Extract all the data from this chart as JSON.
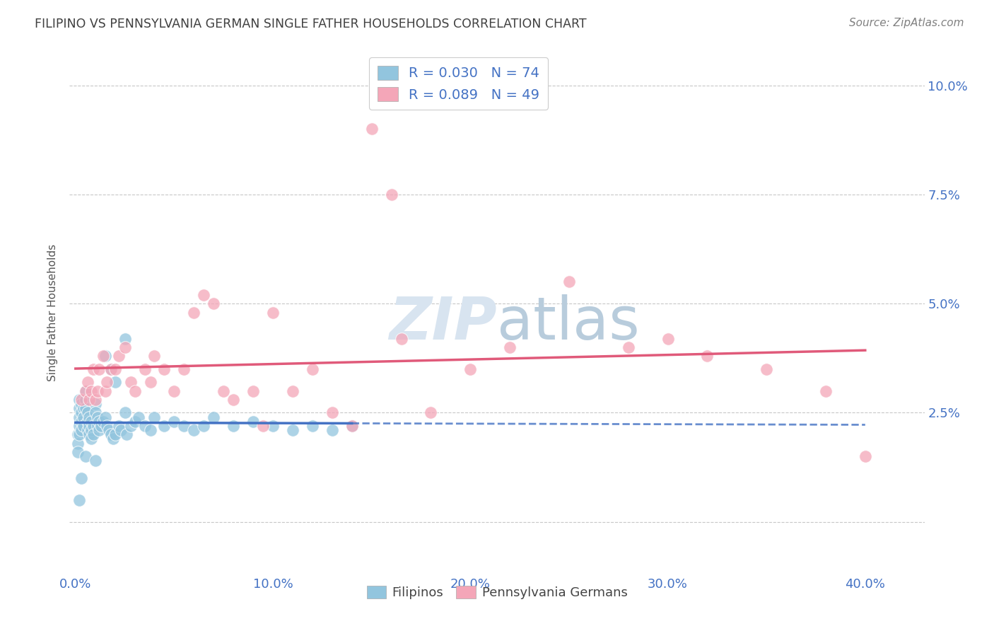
{
  "title": "FILIPINO VS PENNSYLVANIA GERMAN SINGLE FATHER HOUSEHOLDS CORRELATION CHART",
  "source": "Source: ZipAtlas.com",
  "ylabel": "Single Father Households",
  "ytick_values": [
    0.0,
    0.025,
    0.05,
    0.075,
    0.1
  ],
  "ytick_labels": [
    "",
    "2.5%",
    "5.0%",
    "7.5%",
    "10.0%"
  ],
  "xtick_values": [
    0.0,
    0.1,
    0.2,
    0.3,
    0.4
  ],
  "xtick_labels": [
    "0.0%",
    "10.0%",
    "20.0%",
    "30.0%",
    "40.0%"
  ],
  "xlim": [
    -0.003,
    0.43
  ],
  "ylim": [
    -0.012,
    0.108
  ],
  "legend_text_blue": "R = 0.030   N = 74",
  "legend_text_pink": "R = 0.089   N = 49",
  "label_blue": "Filipinos",
  "label_pink": "Pennsylvania Germans",
  "color_blue": "#92c5de",
  "color_pink": "#f4a6b8",
  "color_line_blue": "#4472c4",
  "color_line_pink": "#e05a7a",
  "text_color": "#4472c4",
  "title_color": "#404040",
  "source_color": "#808080",
  "watermark_color": "#d8e4f0",
  "grid_color": "#c8c8c8",
  "blue_x": [
    0.001,
    0.001,
    0.001,
    0.002,
    0.002,
    0.002,
    0.002,
    0.002,
    0.003,
    0.003,
    0.003,
    0.003,
    0.004,
    0.004,
    0.004,
    0.005,
    0.005,
    0.005,
    0.005,
    0.006,
    0.006,
    0.006,
    0.007,
    0.007,
    0.007,
    0.008,
    0.008,
    0.008,
    0.009,
    0.009,
    0.01,
    0.01,
    0.01,
    0.011,
    0.011,
    0.012,
    0.012,
    0.013,
    0.014,
    0.015,
    0.015,
    0.016,
    0.017,
    0.018,
    0.018,
    0.019,
    0.02,
    0.02,
    0.022,
    0.023,
    0.025,
    0.026,
    0.028,
    0.03,
    0.032,
    0.035,
    0.038,
    0.04,
    0.045,
    0.05,
    0.055,
    0.06,
    0.065,
    0.07,
    0.08,
    0.09,
    0.1,
    0.11,
    0.12,
    0.13,
    0.14,
    0.025,
    0.003,
    0.002
  ],
  "blue_y": [
    0.02,
    0.018,
    0.016,
    0.028,
    0.026,
    0.024,
    0.022,
    0.02,
    0.027,
    0.025,
    0.023,
    0.021,
    0.026,
    0.024,
    0.022,
    0.03,
    0.028,
    0.026,
    0.015,
    0.025,
    0.023,
    0.021,
    0.024,
    0.022,
    0.02,
    0.023,
    0.021,
    0.019,
    0.022,
    0.02,
    0.027,
    0.025,
    0.014,
    0.024,
    0.022,
    0.023,
    0.021,
    0.022,
    0.023,
    0.038,
    0.024,
    0.022,
    0.021,
    0.035,
    0.02,
    0.019,
    0.032,
    0.02,
    0.022,
    0.021,
    0.025,
    0.02,
    0.022,
    0.023,
    0.024,
    0.022,
    0.021,
    0.024,
    0.022,
    0.023,
    0.022,
    0.021,
    0.022,
    0.024,
    0.022,
    0.023,
    0.022,
    0.021,
    0.022,
    0.021,
    0.022,
    0.042,
    0.01,
    0.005
  ],
  "pink_x": [
    0.003,
    0.005,
    0.006,
    0.007,
    0.008,
    0.009,
    0.01,
    0.011,
    0.012,
    0.014,
    0.015,
    0.016,
    0.018,
    0.02,
    0.022,
    0.025,
    0.028,
    0.03,
    0.035,
    0.038,
    0.04,
    0.045,
    0.05,
    0.055,
    0.06,
    0.065,
    0.07,
    0.075,
    0.08,
    0.09,
    0.1,
    0.11,
    0.12,
    0.13,
    0.14,
    0.15,
    0.16,
    0.18,
    0.2,
    0.22,
    0.25,
    0.28,
    0.3,
    0.32,
    0.35,
    0.38,
    0.4,
    0.165,
    0.095
  ],
  "pink_y": [
    0.028,
    0.03,
    0.032,
    0.028,
    0.03,
    0.035,
    0.028,
    0.03,
    0.035,
    0.038,
    0.03,
    0.032,
    0.035,
    0.035,
    0.038,
    0.04,
    0.032,
    0.03,
    0.035,
    0.032,
    0.038,
    0.035,
    0.03,
    0.035,
    0.048,
    0.052,
    0.05,
    0.03,
    0.028,
    0.03,
    0.048,
    0.03,
    0.035,
    0.025,
    0.022,
    0.09,
    0.075,
    0.025,
    0.035,
    0.04,
    0.055,
    0.04,
    0.042,
    0.038,
    0.035,
    0.03,
    0.015,
    0.042,
    0.022
  ]
}
